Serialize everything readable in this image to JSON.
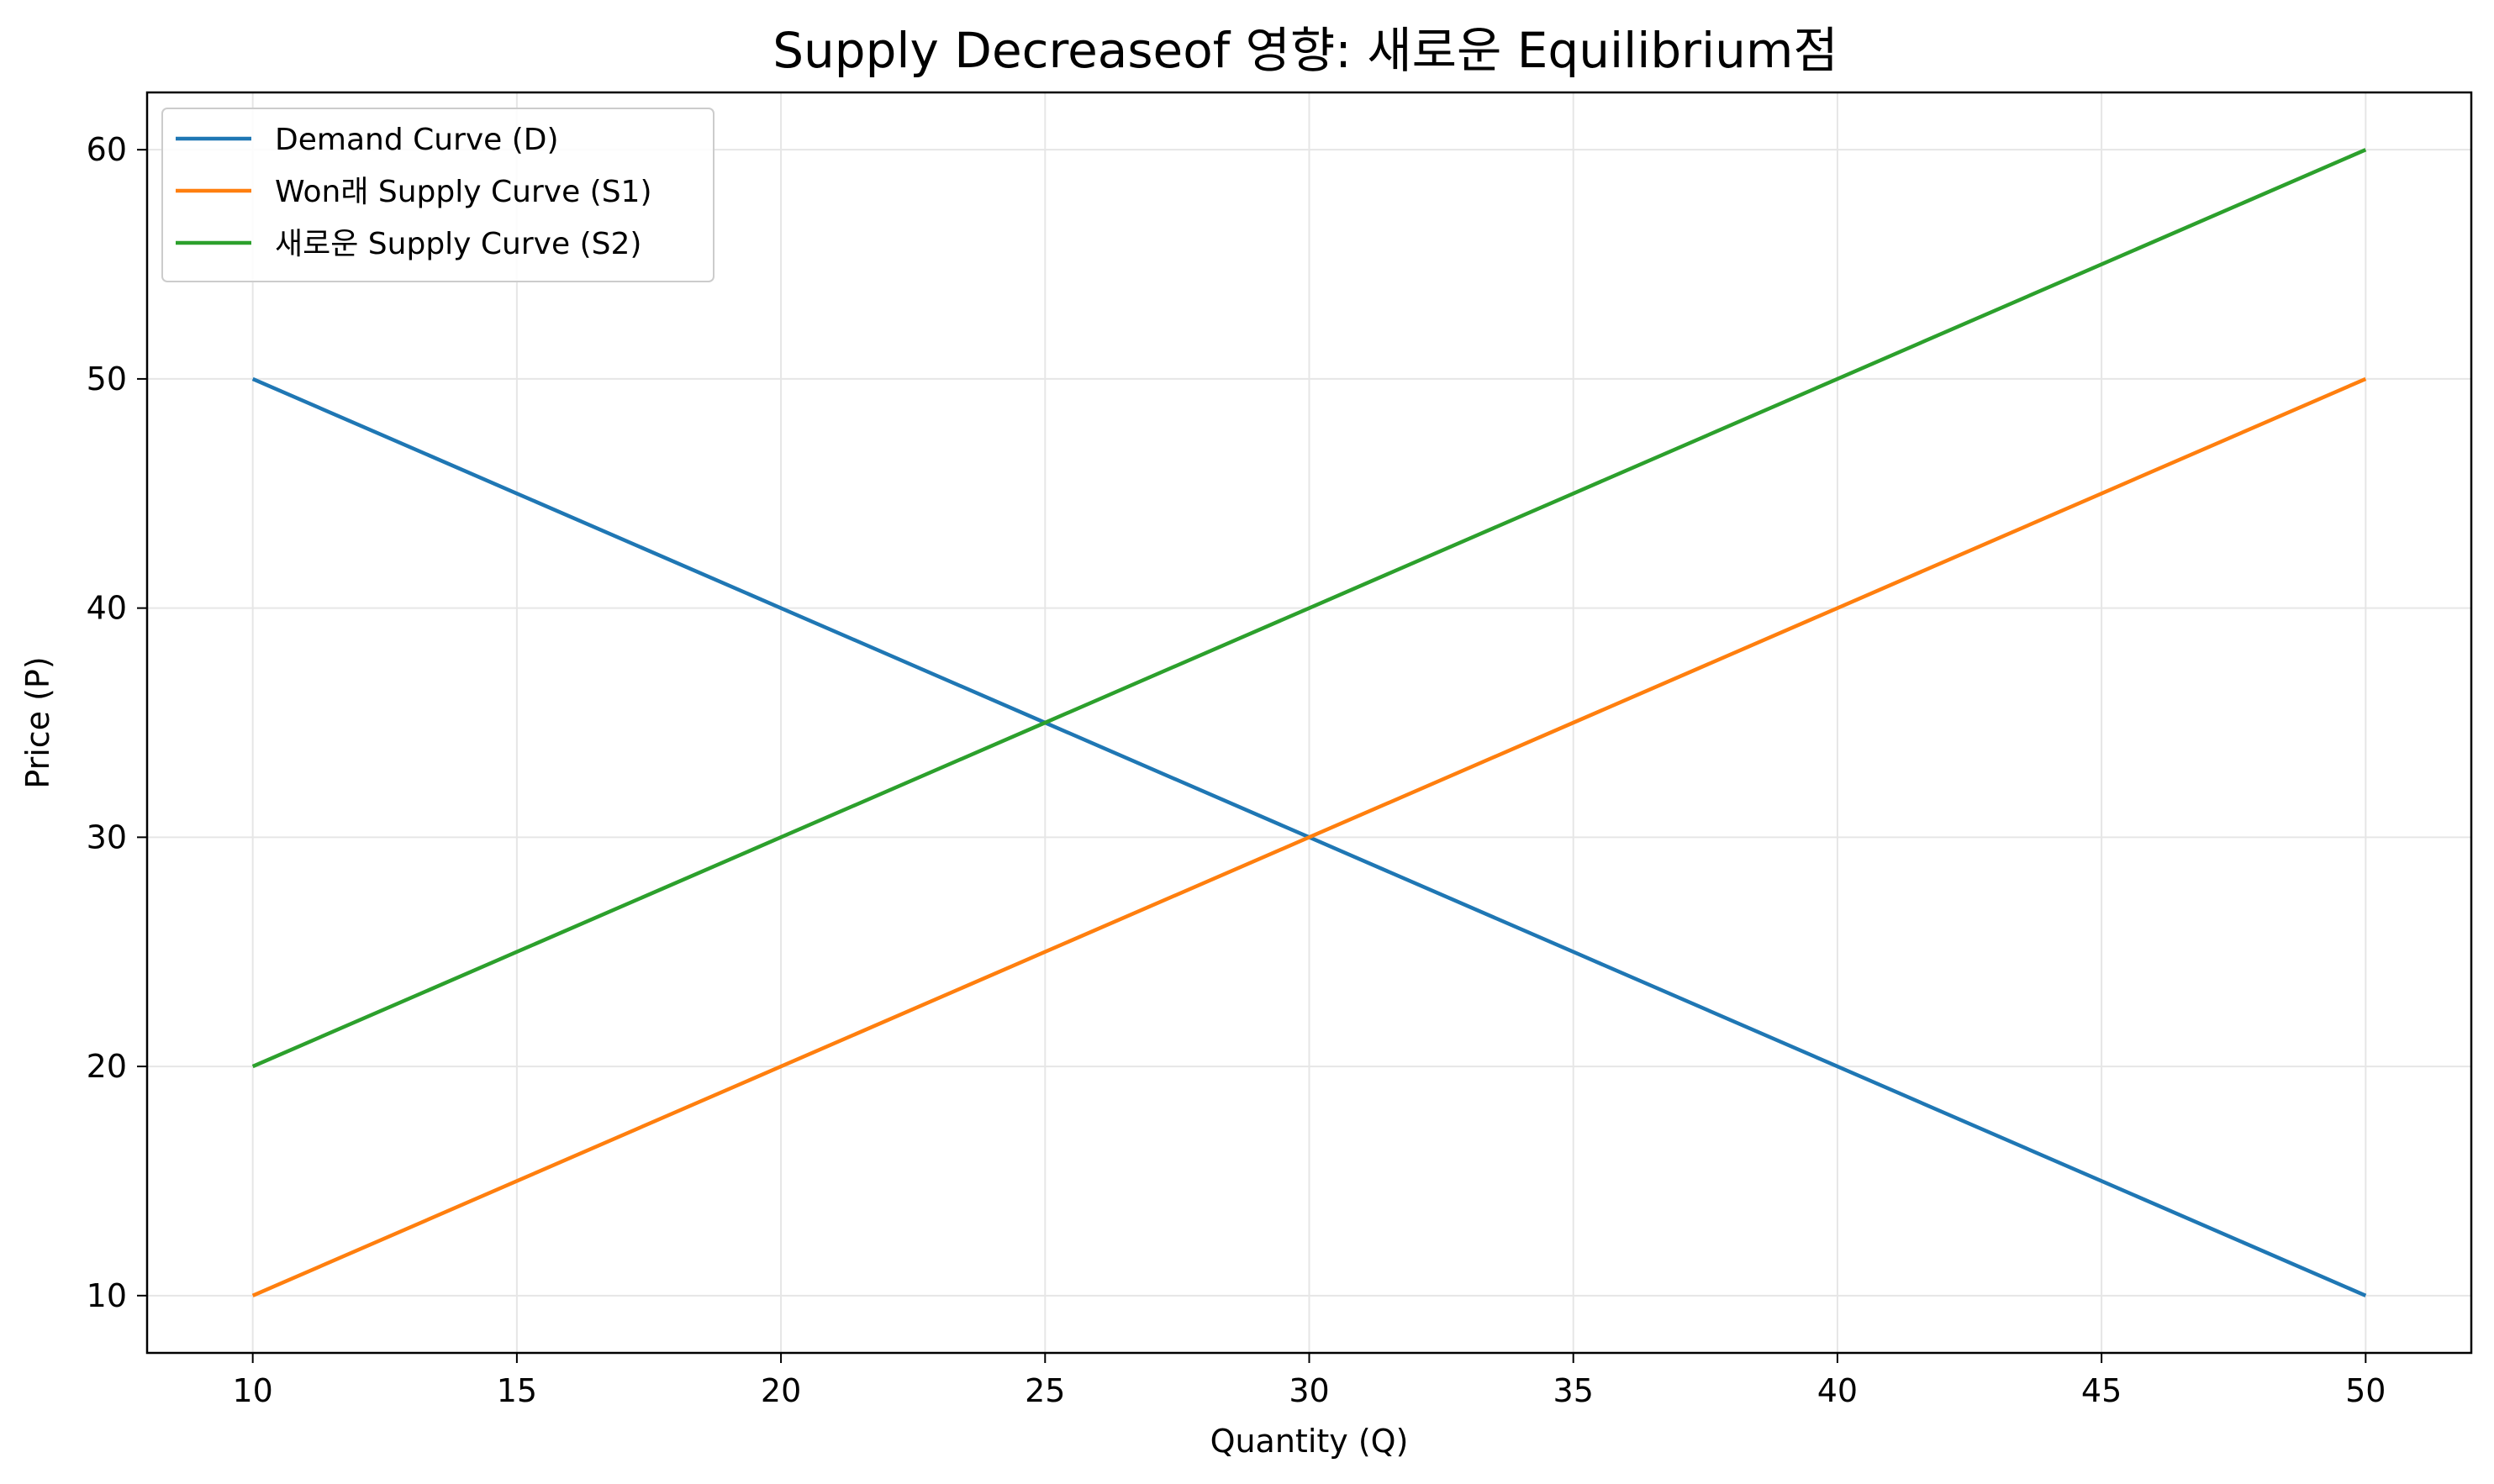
{
  "chart_data": {
    "type": "line",
    "title": "Supply Decreaseof 영향: 새로운 Equilibrium점",
    "xlabel": "Quantity (Q)",
    "ylabel": "Price (P)",
    "xlim": [
      8,
      52
    ],
    "ylim": [
      7.5,
      62.5
    ],
    "xticks": [
      10,
      15,
      20,
      25,
      30,
      35,
      40,
      45,
      50
    ],
    "yticks": [
      10,
      20,
      30,
      40,
      50,
      60
    ],
    "grid": true,
    "legend_position": "top-left",
    "x": [
      10,
      15,
      20,
      25,
      30,
      35,
      40,
      45,
      50
    ],
    "series": [
      {
        "name": "Demand Curve (D)",
        "color": "#1f77b4",
        "values": [
          50,
          45,
          40,
          35,
          30,
          25,
          20,
          15,
          10
        ]
      },
      {
        "name": "Won래 Supply Curve (S1)",
        "color": "#ff7f0e",
        "values": [
          10,
          15,
          20,
          25,
          30,
          35,
          40,
          45,
          50
        ]
      },
      {
        "name": "새로운 Supply Curve (S2)",
        "color": "#2ca02c",
        "values": [
          20,
          25,
          30,
          35,
          40,
          45,
          50,
          55,
          60
        ]
      }
    ]
  }
}
